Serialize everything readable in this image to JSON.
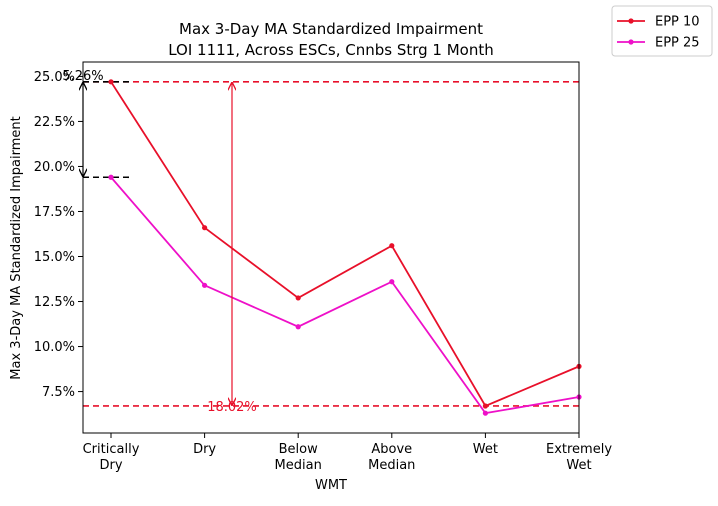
{
  "chart_data": {
    "type": "line",
    "title_lines": [
      "Max 3-Day MA Standardized Impairment",
      "LOI 1111, Across ESCs, Cnnbs Strg 1 Month"
    ],
    "xlabel": "WMT",
    "ylabel": "Max 3-Day MA Standardized Impairment",
    "categories": [
      [
        "Critically",
        "Dry"
      ],
      [
        "Dry"
      ],
      [
        "Below",
        "Median"
      ],
      [
        "Above",
        "Median"
      ],
      [
        "Wet"
      ],
      [
        "Extremely",
        "Wet"
      ]
    ],
    "ylim": [
      5.2,
      25.8
    ],
    "yticks": [
      7.5,
      10.0,
      12.5,
      15.0,
      17.5,
      20.0,
      22.5,
      25.0
    ],
    "ytick_labels": [
      "7.5%",
      "10.0%",
      "12.5%",
      "15.0%",
      "17.5%",
      "20.0%",
      "22.5%",
      "25.0%"
    ],
    "series": [
      {
        "name": "EPP 10",
        "color": "#e8102a",
        "values": [
          24.7,
          16.6,
          12.7,
          15.6,
          6.7,
          8.9
        ]
      },
      {
        "name": "EPP 25",
        "color": "#ee10c8",
        "values": [
          19.4,
          13.4,
          11.1,
          13.6,
          6.3,
          7.2
        ]
      }
    ],
    "reference_lines": {
      "red_top": 24.7,
      "red_bottom": 6.7,
      "black_top": 24.7,
      "black_bottom": 19.4
    },
    "annotations": {
      "black_diff_label": "5.26%",
      "red_diff_label": "18.02%"
    },
    "legend_placement": "top-right, outside plot",
    "grid": false
  }
}
